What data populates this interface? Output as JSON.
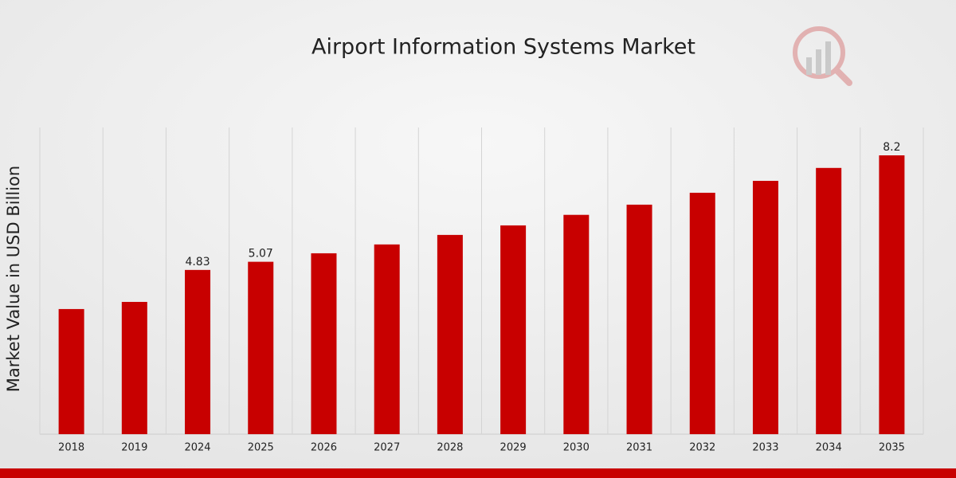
{
  "chart_data": {
    "type": "bar",
    "title": "Airport Information Systems Market",
    "y_label": "Market Value in USD Billion",
    "categories": [
      "2018",
      "2019",
      "2024",
      "2025",
      "2026",
      "2027",
      "2028",
      "2029",
      "2030",
      "2031",
      "2032",
      "2033",
      "2034",
      "2035"
    ],
    "values": [
      3.68,
      3.89,
      4.83,
      5.07,
      5.32,
      5.58,
      5.86,
      6.14,
      6.45,
      6.75,
      7.1,
      7.45,
      7.83,
      8.2
    ],
    "value_labels": [
      null,
      null,
      "4.83",
      "5.07",
      null,
      null,
      null,
      null,
      null,
      null,
      null,
      null,
      null,
      "8.2"
    ],
    "color": "#c80000",
    "grid": true
  }
}
